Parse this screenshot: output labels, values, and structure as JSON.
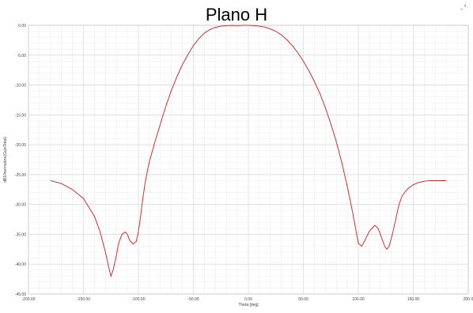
{
  "corner_mark": "_ ᵈ",
  "chart_data": {
    "type": "line",
    "title": "Plano H",
    "xlabel": "Theta [deg]",
    "ylabel": "dB10normalize(GainTotal)",
    "xlim": [
      -200,
      200
    ],
    "ylim": [
      -45,
      0
    ],
    "x_ticks": [
      "-200.00",
      "-150.00",
      "-100.00",
      "-50.00",
      "0.00",
      "50.00",
      "100.00",
      "150.00",
      "200.0"
    ],
    "y_ticks": [
      "0.00",
      "-5.00",
      "-10.00",
      "-15.00",
      "-20.00",
      "-25.00",
      "-30.00",
      "-35.00",
      "-40.00",
      "-45.00"
    ],
    "grid": true,
    "series": [
      {
        "color": "#d32f2f",
        "x": [
          -180,
          -170,
          -160,
          -150,
          -140,
          -135,
          -130,
          -127,
          -125,
          -123,
          -120,
          -118,
          -115,
          -112,
          -110,
          -108,
          -105,
          -102,
          -100,
          -98,
          -96,
          -94,
          -92,
          -90,
          -85,
          -80,
          -75,
          -70,
          -65,
          -60,
          -55,
          -50,
          -45,
          -40,
          -35,
          -30,
          -25,
          -20,
          -15,
          -10,
          -5,
          0,
          5,
          10,
          15,
          20,
          25,
          30,
          35,
          40,
          45,
          50,
          55,
          60,
          65,
          70,
          75,
          80,
          85,
          90,
          95,
          98,
          100,
          103,
          106,
          110,
          115,
          118,
          121,
          124,
          126,
          128,
          131,
          134,
          137,
          140,
          143,
          146,
          150,
          155,
          160,
          165,
          170,
          175,
          180
        ],
        "y": [
          -26,
          -26.5,
          -27.5,
          -29,
          -32,
          -34.5,
          -38,
          -40.5,
          -42,
          -41,
          -38.5,
          -36.5,
          -35,
          -34.6,
          -35,
          -36,
          -36.6,
          -36.2,
          -34.5,
          -32,
          -29,
          -26.5,
          -24.5,
          -22.8,
          -19.5,
          -16.5,
          -13.5,
          -10.9,
          -8.6,
          -6.6,
          -4.9,
          -3.4,
          -2.2,
          -1.3,
          -0.7,
          -0.35,
          -0.15,
          -0.05,
          -0.02,
          -0.05,
          0,
          0,
          -0.05,
          -0.15,
          -0.3,
          -0.6,
          -1.0,
          -1.6,
          -2.4,
          -3.4,
          -4.6,
          -6.0,
          -7.6,
          -9.4,
          -11.4,
          -13.8,
          -16.5,
          -19.5,
          -23,
          -27,
          -31.5,
          -34.5,
          -36.5,
          -37.0,
          -36.0,
          -34.5,
          -33.5,
          -34.0,
          -35.5,
          -37.0,
          -37.5,
          -37.0,
          -35.0,
          -32.5,
          -30.0,
          -28.5,
          -27.8,
          -27.2,
          -26.7,
          -26.3,
          -26.1,
          -26.0,
          -26.0,
          -26.0,
          -26.0
        ]
      }
    ]
  }
}
